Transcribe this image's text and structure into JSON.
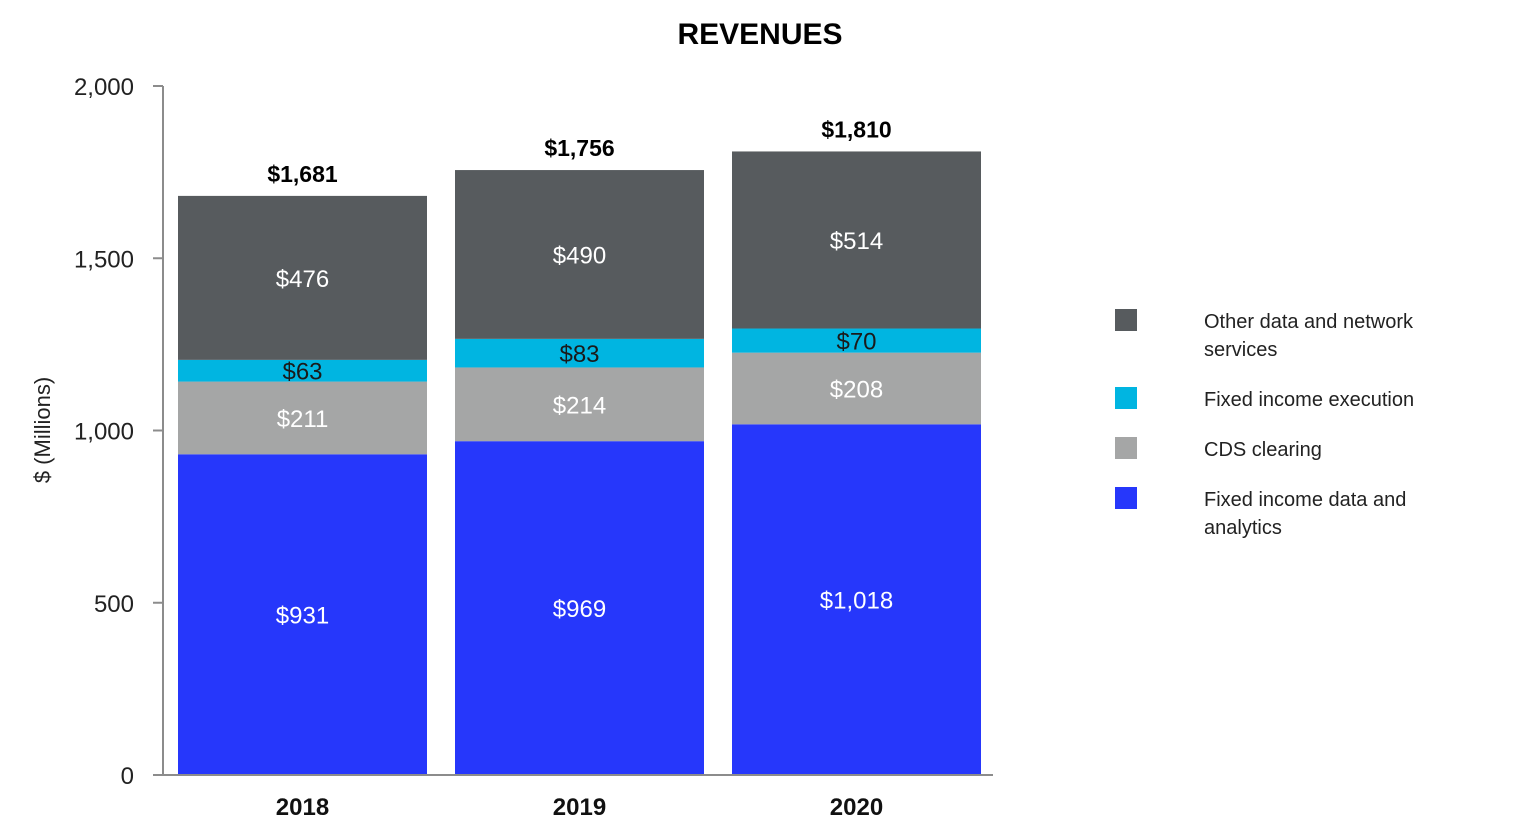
{
  "chart_data": {
    "type": "bar",
    "stacked": true,
    "title": "REVENUES",
    "xlabel": "",
    "ylabel": "$ (Millions)",
    "ylim": [
      0,
      2000
    ],
    "yticks": [
      0,
      500,
      1000,
      1500,
      2000
    ],
    "ytick_labels": [
      "0",
      "500",
      "1,000",
      "1,500",
      "2,000"
    ],
    "categories": [
      "2018",
      "2019",
      "2020"
    ],
    "totals": [
      1681,
      1756,
      1810
    ],
    "total_labels": [
      "$1,681",
      "$1,756",
      "$1,810"
    ],
    "grid": false,
    "legend_position": "right",
    "series": [
      {
        "name": "Fixed income data and analytics",
        "color": "#2637fb",
        "label_color": "#ffffff",
        "values": [
          931,
          969,
          1018
        ],
        "labels": [
          "$931",
          "$969",
          "$1,018"
        ]
      },
      {
        "name": "CDS clearing",
        "color": "#a5a6a6",
        "label_color": "#ffffff",
        "values": [
          211,
          214,
          208
        ],
        "labels": [
          "$211",
          "$214",
          "$208"
        ]
      },
      {
        "name": "Fixed income execution",
        "color": "#00b5e1",
        "label_color": "#1a1a1a",
        "values": [
          63,
          83,
          70
        ],
        "labels": [
          "$63",
          "$83",
          "$70"
        ]
      },
      {
        "name": "Other data and network services",
        "color": "#575b5e",
        "label_color": "#ffffff",
        "values": [
          476,
          490,
          514
        ],
        "labels": [
          "$476",
          "$490",
          "$514"
        ]
      }
    ],
    "legend": [
      {
        "lines": [
          "Other data and network",
          "services"
        ],
        "color": "#575b5e"
      },
      {
        "lines": [
          "Fixed income execution"
        ],
        "color": "#00b5e1"
      },
      {
        "lines": [
          "CDS clearing"
        ],
        "color": "#a5a6a6"
      },
      {
        "lines": [
          "Fixed income data and",
          "analytics"
        ],
        "color": "#2637fb"
      }
    ]
  }
}
